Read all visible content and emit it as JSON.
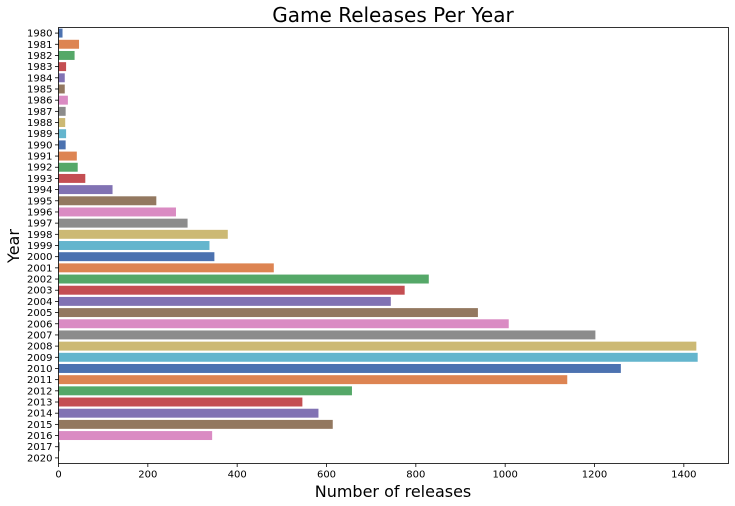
{
  "chart_data": {
    "type": "bar",
    "orientation": "horizontal",
    "title": "Game Releases Per Year",
    "xlabel": "Number of releases",
    "ylabel": "Year",
    "xlim": [
      0,
      1500
    ],
    "xticks": [
      0,
      200,
      400,
      600,
      800,
      1000,
      1200,
      1400
    ],
    "grid": false,
    "categories": [
      "1980",
      "1981",
      "1982",
      "1983",
      "1984",
      "1985",
      "1986",
      "1987",
      "1988",
      "1989",
      "1990",
      "1991",
      "1992",
      "1993",
      "1994",
      "1995",
      "1996",
      "1997",
      "1998",
      "1999",
      "2000",
      "2001",
      "2002",
      "2003",
      "2004",
      "2005",
      "2006",
      "2007",
      "2008",
      "2009",
      "2010",
      "2011",
      "2012",
      "2013",
      "2014",
      "2015",
      "2016",
      "2017",
      "2020"
    ],
    "values": [
      9,
      46,
      36,
      17,
      14,
      14,
      21,
      16,
      15,
      17,
      16,
      41,
      43,
      60,
      121,
      219,
      263,
      289,
      379,
      338,
      349,
      482,
      829,
      775,
      744,
      939,
      1008,
      1202,
      1428,
      1431,
      1259,
      1139,
      657,
      546,
      582,
      614,
      344,
      3,
      1
    ],
    "colors": [
      "#4c72b0",
      "#dd8452",
      "#55a868",
      "#c44e52",
      "#8172b3",
      "#937860",
      "#da8bc3",
      "#8c8c8c",
      "#ccb974",
      "#64b5cd"
    ]
  }
}
